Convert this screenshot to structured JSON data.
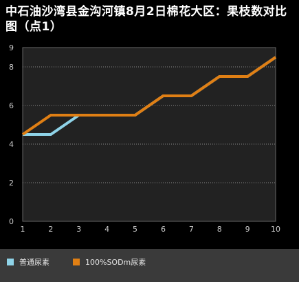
{
  "title": "中石油沙湾县金沟河镇8月2日棉花大区：果枝数对比图（点1）",
  "chart_data": {
    "type": "line",
    "categories": [
      "1",
      "2",
      "3",
      "4",
      "5",
      "6",
      "7",
      "8",
      "9",
      "10"
    ],
    "series": [
      {
        "name": "普通尿素",
        "color": "#8fd3e8",
        "values": [
          4.5,
          4.5,
          5.5,
          5.5,
          5.5,
          6.5,
          6.5,
          7.5,
          7.5,
          8.5
        ]
      },
      {
        "name": "100%SODm尿素",
        "color": "#e07f14",
        "values": [
          4.5,
          5.5,
          5.5,
          5.5,
          5.5,
          6.5,
          6.5,
          7.5,
          7.5,
          8.5
        ]
      }
    ],
    "ylim": [
      0,
      9
    ],
    "yticks": [
      "0",
      "2",
      "4",
      "6",
      "8",
      "9"
    ],
    "grid": true,
    "legend_position": "bottom"
  },
  "colors": {
    "background": "#000000",
    "plot_bg": "#222222",
    "grid": "#888888",
    "axis_text": "#cccccc"
  }
}
